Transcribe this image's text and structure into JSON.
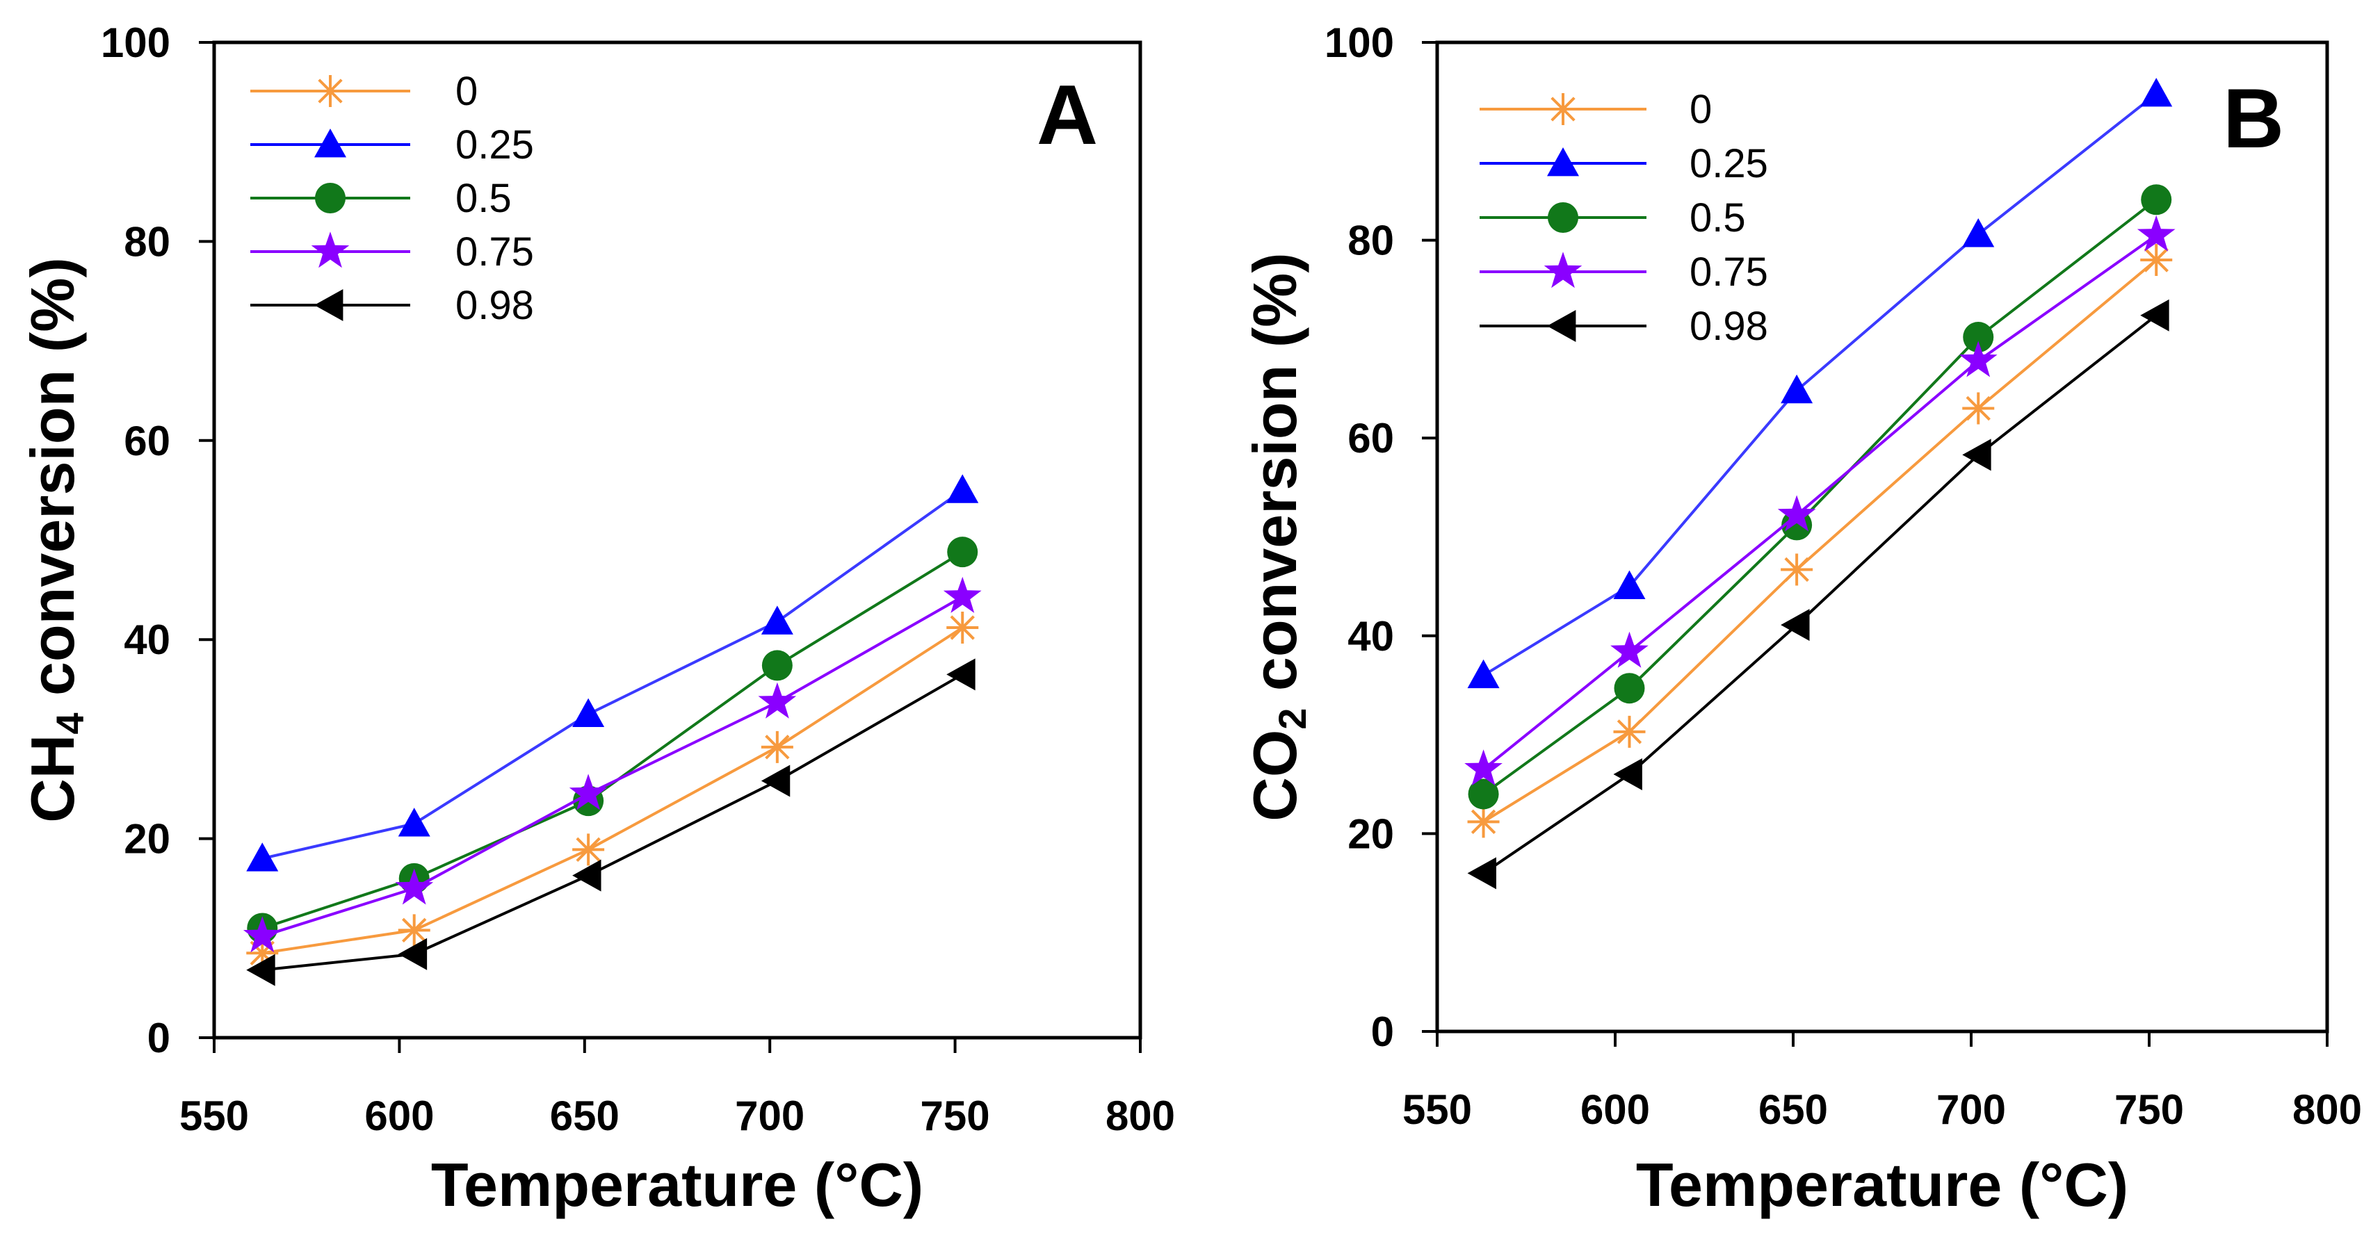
{
  "chart_data": [
    {
      "type": "line",
      "panel_label": "A",
      "xlabel": "Temperature (°C)",
      "ylabel_main": "CH",
      "ylabel_sub": "4",
      "ylabel_rest": " conversion (%)",
      "xlim": [
        550,
        800
      ],
      "ylim": [
        0,
        100
      ],
      "xticks": [
        550,
        600,
        650,
        700,
        750,
        800
      ],
      "yticks": [
        0,
        20,
        40,
        60,
        80,
        100
      ],
      "legend_position": "top-left",
      "grid": false,
      "x": [
        563,
        604,
        651,
        702,
        752
      ],
      "series": [
        {
          "name": "0",
          "marker": "asterisk",
          "color": "#f79a3e",
          "values": [
            8.5,
            10.8,
            18.9,
            29.2,
            41.2
          ]
        },
        {
          "name": "0.25",
          "marker": "triangle-up",
          "color": "#0000ff",
          "values": [
            18.0,
            21.5,
            32.5,
            41.8,
            55.0
          ]
        },
        {
          "name": "0.5",
          "marker": "circle",
          "color": "#11781a",
          "values": [
            11.0,
            16.0,
            23.8,
            37.4,
            48.8
          ]
        },
        {
          "name": "0.75",
          "marker": "star",
          "color": "#8a00ff",
          "values": [
            10.2,
            15.0,
            24.5,
            33.7,
            44.3
          ]
        },
        {
          "name": "0.98",
          "marker": "triangle-left",
          "color": "#000000",
          "values": [
            6.8,
            8.4,
            16.3,
            25.8,
            36.5
          ]
        }
      ]
    },
    {
      "type": "line",
      "panel_label": "B",
      "xlabel": "Temperature (°C)",
      "ylabel_main": "CO",
      "ylabel_sub": "2",
      "ylabel_rest": " conversion (%)",
      "xlim": [
        550,
        800
      ],
      "ylim": [
        0,
        100
      ],
      "xticks": [
        550,
        600,
        650,
        700,
        750,
        800
      ],
      "yticks": [
        0,
        20,
        40,
        60,
        80,
        100
      ],
      "legend_position": "top-left",
      "grid": false,
      "x": [
        563,
        604,
        651,
        702,
        752
      ],
      "series": [
        {
          "name": "0",
          "marker": "asterisk",
          "color": "#f79a3e",
          "values": [
            21.2,
            30.3,
            46.7,
            63.0,
            78.0
          ]
        },
        {
          "name": "0.25",
          "marker": "triangle-up",
          "color": "#0000ff",
          "values": [
            36.0,
            45.0,
            64.8,
            80.6,
            94.8
          ]
        },
        {
          "name": "0.5",
          "marker": "circle",
          "color": "#11781a",
          "values": [
            24.0,
            34.7,
            51.2,
            70.2,
            84.1
          ]
        },
        {
          "name": "0.75",
          "marker": "star",
          "color": "#8a00ff",
          "values": [
            26.5,
            38.4,
            52.2,
            67.8,
            80.5
          ]
        },
        {
          "name": "0.98",
          "marker": "triangle-left",
          "color": "#000000",
          "values": [
            16.0,
            26.0,
            41.1,
            58.3,
            72.4
          ]
        }
      ]
    }
  ]
}
